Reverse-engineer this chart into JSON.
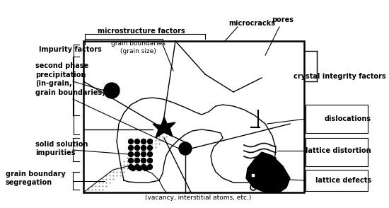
{
  "fig_width": 5.5,
  "fig_height": 2.94,
  "dpi": 100,
  "bg_color": "#ffffff",
  "labels": {
    "microstructure_factors": "microstructure factors",
    "grain_boundaries": "grain boundaries\n(grain size)",
    "microcracks": "microcracks",
    "pores": "pores",
    "impurity_factors": "Impurity factors",
    "second_phase": "second phase\nprecipitation\n(in-grain,\ngrain boundaries)",
    "solid_solution": "solid solution\nimpurities",
    "grain_boundary_seg": "grain boundary\nsegregation",
    "crystal_integrity": "crystal integrity factors",
    "dislocations": "dislocations",
    "lattice_distortion": "lattice distortion",
    "lattice_defects": "lattice defects",
    "vacancy": "(vacancy, interstitial atoms, etc.)"
  }
}
